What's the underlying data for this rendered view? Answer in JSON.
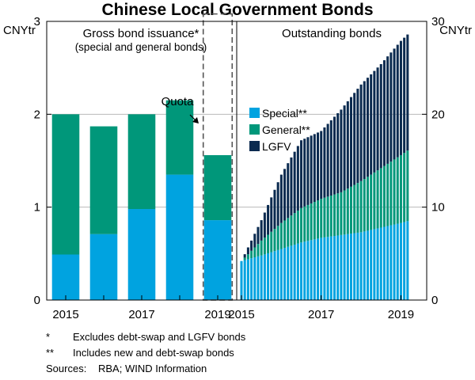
{
  "colors": {
    "special": "#00a3e0",
    "general": "#00977a",
    "lgfv": "#0a2a4f",
    "grid": "#b9b9b9",
    "frame": "#000000",
    "quota_outline": "#555555"
  },
  "chart_data": {
    "title": "Chinese Local Government Bonds",
    "left_unit": "CNYtr",
    "right_unit": "CNYtr",
    "grid": true,
    "panels": [
      {
        "type": "bar",
        "stacked": true,
        "title": "Gross bond issuance*",
        "subtitle": "(special and general bonds)",
        "y_axis": "left",
        "ylim": [
          0,
          3
        ],
        "yticks": [
          "0",
          "1",
          "2",
          "3"
        ],
        "x_tick_labels": [
          "2015",
          "2017",
          "2019"
        ],
        "categories": [
          "2015",
          "2016",
          "2017",
          "2018",
          "2019"
        ],
        "series": [
          {
            "key": "special",
            "values": [
              0.49,
              0.71,
              0.98,
              1.35,
              0.86
            ]
          },
          {
            "key": "general",
            "values": [
              1.51,
              1.16,
              1.02,
              0.8,
              0.7
            ]
          }
        ],
        "quota": {
          "label": "Quota",
          "category": "2019",
          "value": 3.08
        }
      },
      {
        "type": "bar",
        "stacked": true,
        "title": "Outstanding bonds",
        "y_axis": "right",
        "ylim": [
          0,
          30
        ],
        "yticks": [
          "0",
          "10",
          "20",
          "30"
        ],
        "x_tick_labels": [
          "2015",
          "2017",
          "2019"
        ],
        "x_start": 2015.0,
        "x_end": 2019.17,
        "bars_per_year": 12,
        "special_points": [
          [
            2015.0,
            4.2
          ],
          [
            2015.5,
            4.8
          ],
          [
            2016.0,
            5.5
          ],
          [
            2016.5,
            6.2
          ],
          [
            2017.0,
            6.7
          ],
          [
            2017.5,
            7.0
          ],
          [
            2018.0,
            7.3
          ],
          [
            2018.5,
            7.8
          ],
          [
            2019.0,
            8.3
          ],
          [
            2019.17,
            8.5
          ]
        ],
        "general_points": [
          [
            2015.0,
            0.0
          ],
          [
            2015.5,
            1.6
          ],
          [
            2016.0,
            2.8
          ],
          [
            2016.5,
            3.7
          ],
          [
            2017.0,
            4.2
          ],
          [
            2017.5,
            4.6
          ],
          [
            2018.0,
            5.5
          ],
          [
            2018.5,
            6.4
          ],
          [
            2019.0,
            7.3
          ],
          [
            2019.17,
            7.6
          ]
        ],
        "lgfv_points": [
          [
            2015.0,
            0.0
          ],
          [
            2015.5,
            2.2
          ],
          [
            2016.0,
            5.2
          ],
          [
            2016.5,
            7.3
          ],
          [
            2017.0,
            7.3
          ],
          [
            2017.5,
            8.9
          ],
          [
            2018.0,
            10.4
          ],
          [
            2018.5,
            11.2
          ],
          [
            2019.0,
            12.3
          ],
          [
            2019.17,
            12.5
          ]
        ]
      }
    ],
    "legend": {
      "placement": "top-left of right panel",
      "entries": [
        {
          "key": "special",
          "label": "Special**"
        },
        {
          "key": "general",
          "label": "General**"
        },
        {
          "key": "lgfv",
          "label": "LGFV"
        }
      ]
    }
  },
  "notes": [
    {
      "marker": "*",
      "text": "Excludes debt-swap and LGFV bonds"
    },
    {
      "marker": "**",
      "text": "Includes new and debt-swap bonds"
    }
  ],
  "sources": {
    "label": "Sources:",
    "text": "RBA; WIND Information"
  }
}
